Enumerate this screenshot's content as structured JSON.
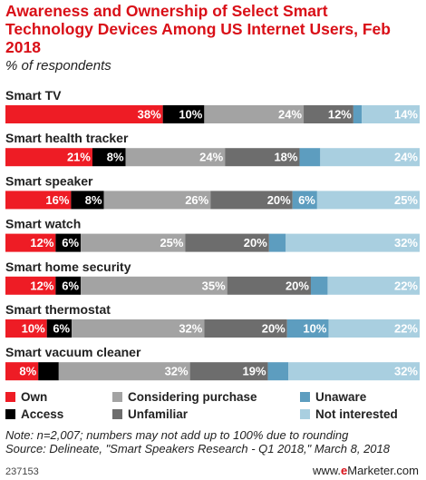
{
  "chart_data": {
    "type": "bar",
    "orientation": "horizontal",
    "stacked": true,
    "title": "Awareness and Ownership of Select Smart Technology Devices Among US Internet Users, Feb 2018",
    "subtitle": "% of respondents",
    "unit": "%",
    "categories": [
      "Smart TV",
      "Smart health tracker",
      "Smart speaker",
      "Smart watch",
      "Smart home security",
      "Smart thermostat",
      "Smart vacuum cleaner"
    ],
    "series": [
      {
        "name": "Own",
        "color": "#ee1c25",
        "values": [
          38,
          21,
          16,
          12,
          12,
          10,
          8
        ]
      },
      {
        "name": "Access",
        "color": "#000000",
        "values": [
          10,
          8,
          8,
          6,
          6,
          6,
          5
        ]
      },
      {
        "name": "Considering purchase",
        "color": "#a3a3a3",
        "values": [
          24,
          24,
          26,
          25,
          35,
          32,
          32
        ]
      },
      {
        "name": "Unfamiliar",
        "color": "#6d6d6d",
        "values": [
          12,
          18,
          20,
          20,
          20,
          20,
          19
        ]
      },
      {
        "name": "Unaware",
        "color": "#5d9dbf",
        "values": [
          2,
          5,
          6,
          4,
          4,
          10,
          5
        ]
      },
      {
        "name": "Not interested",
        "color": "#a9cfe0",
        "values": [
          14,
          24,
          25,
          32,
          22,
          22,
          32
        ]
      }
    ],
    "legend_position": "bottom",
    "grid": false
  },
  "legend_items": [
    {
      "label": "Own",
      "color": "#ee1c25"
    },
    {
      "label": "Considering purchase",
      "color": "#a3a3a3"
    },
    {
      "label": "Unaware",
      "color": "#5d9dbf"
    },
    {
      "label": "Access",
      "color": "#000000"
    },
    {
      "label": "Unfamiliar",
      "color": "#6d6d6d"
    },
    {
      "label": "Not interested",
      "color": "#a9cfe0"
    }
  ],
  "footnote_line1": "Note: n=2,007; numbers may not add up to 100% due to rounding",
  "footnote_line2": "Source: Delineate, \"Smart Speakers Research - Q1 2018,\" March 8, 2018",
  "chart_id": "237153",
  "brand": {
    "prefix": "www.",
    "highlight": "e",
    "suffix": "Marketer.com"
  }
}
